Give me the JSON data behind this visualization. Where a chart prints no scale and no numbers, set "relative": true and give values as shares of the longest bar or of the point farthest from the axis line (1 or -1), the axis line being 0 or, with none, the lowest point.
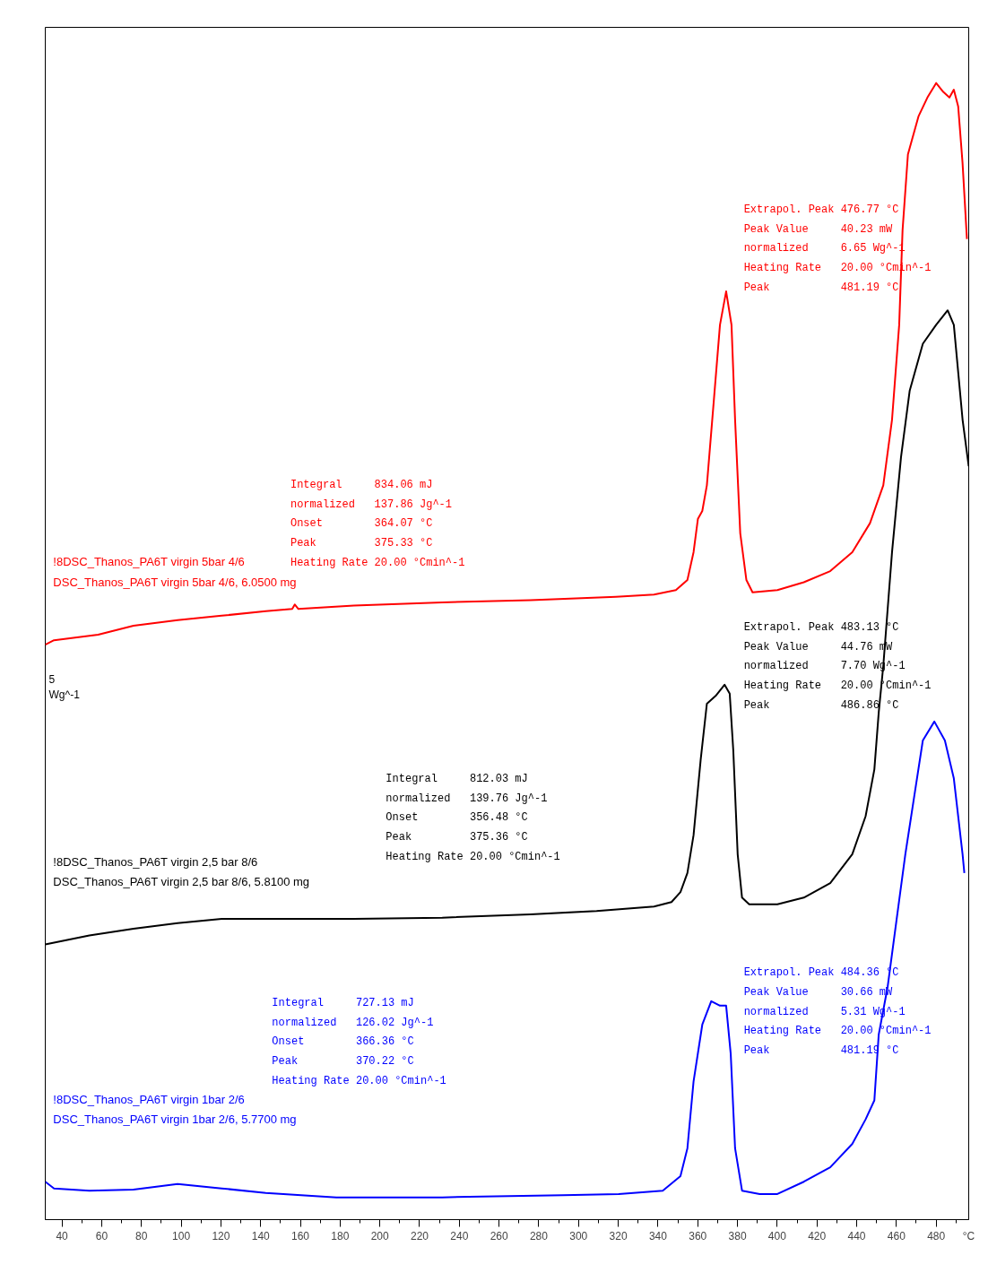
{
  "chart_data": {
    "type": "line",
    "relative": true,
    "xlabel": "°C",
    "xlim": [
      31.6,
      496.4
    ],
    "xticks": [
      40,
      60,
      80,
      100,
      120,
      140,
      160,
      180,
      200,
      220,
      240,
      260,
      280,
      300,
      320,
      340,
      360,
      380,
      400,
      420,
      440,
      460,
      480
    ],
    "grid": false,
    "series": [
      {
        "name": "!8DSC_Thanos_PA6T virgin 5bar 4/6\nDSC_Thanos_PA6T virgin 5bar 4/6, 6.0500 mg",
        "color": "#ff0000",
        "x": [
          31.6,
          36.0,
          58.2,
          76.0,
          98.2,
          120.4,
          142.6,
          155.9,
          157.2,
          159.0,
          187.0,
          231.4,
          275.8,
          318.8,
          338.0,
          349.0,
          354.8,
          357.9,
          360.1,
          362.3,
          364.6,
          368.1,
          371.2,
          374.3,
          377.0,
          378.8,
          381.4,
          384.5,
          387.6,
          400.1,
          413.4,
          426.7,
          437.8,
          446.7,
          453.4,
          457.8,
          461.4,
          463.1,
          465.8,
          471.1,
          475.6,
          480.0,
          483.6,
          486.7,
          488.9,
          491.1,
          493.3,
          495.5
        ],
        "values": [
          0.496,
          0.5,
          0.505,
          0.513,
          0.518,
          0.522,
          0.526,
          0.528,
          0.532,
          0.528,
          0.531,
          0.534,
          0.536,
          0.539,
          0.541,
          0.545,
          0.554,
          0.579,
          0.609,
          0.616,
          0.639,
          0.715,
          0.783,
          0.813,
          0.783,
          0.698,
          0.596,
          0.554,
          0.543,
          0.545,
          0.552,
          0.562,
          0.579,
          0.605,
          0.639,
          0.698,
          0.783,
          0.868,
          0.936,
          0.97,
          0.987,
          1.0,
          0.992,
          0.987,
          0.994,
          0.979,
          0.928,
          0.86
        ]
      },
      {
        "name": "!8DSC_Thanos_PA6T virgin 2,5 bar 8/6\nDSC_Thanos_PA6T virgin 2,5 bar 8/6, 5.8100 mg",
        "color": "#000000",
        "x": [
          31.6,
          53.8,
          76.0,
          98.2,
          120.4,
          142.6,
          187.0,
          231.4,
          275.8,
          309.1,
          338.0,
          346.8,
          351.3,
          354.8,
          357.9,
          361.5,
          364.6,
          369.0,
          373.5,
          376.1,
          377.9,
          380.1,
          382.3,
          385.9,
          400.1,
          413.4,
          426.7,
          437.8,
          444.5,
          448.9,
          451.1,
          453.4,
          457.8,
          462.3,
          466.7,
          473.3,
          480.0,
          485.8,
          488.9,
          493.3,
          496.4
        ],
        "values": [
          0.227,
          0.235,
          0.241,
          0.246,
          0.25,
          0.25,
          0.25,
          0.251,
          0.254,
          0.257,
          0.261,
          0.265,
          0.274,
          0.291,
          0.325,
          0.393,
          0.443,
          0.45,
          0.46,
          0.452,
          0.401,
          0.308,
          0.269,
          0.263,
          0.263,
          0.269,
          0.282,
          0.308,
          0.342,
          0.384,
          0.435,
          0.477,
          0.579,
          0.664,
          0.724,
          0.766,
          0.783,
          0.796,
          0.783,
          0.698,
          0.656
        ]
      },
      {
        "name": "!8DSC_Thanos_PA6T virgin 1bar 2/6\nDSC_Thanos_PA6T virgin 1bar 2/6, 5.7700 mg",
        "color": "#0000ff",
        "x": [
          31.6,
          36.0,
          53.8,
          76.0,
          98.2,
          120.4,
          142.6,
          178.1,
          231.4,
          292.2,
          320.2,
          342.4,
          351.3,
          354.8,
          357.9,
          362.3,
          366.8,
          371.2,
          374.3,
          376.6,
          378.8,
          382.3,
          391.2,
          400.1,
          413.4,
          426.7,
          437.8,
          444.5,
          448.9,
          451.1,
          455.6,
          460.0,
          464.5,
          468.9,
          473.3,
          479.1,
          484.4,
          488.9,
          493.3,
          494.2
        ],
        "values": [
          0.014,
          0.008,
          0.006,
          0.007,
          0.012,
          0.008,
          0.004,
          0,
          0,
          0.002,
          0.003,
          0.006,
          0.019,
          0.044,
          0.104,
          0.155,
          0.176,
          0.172,
          0.172,
          0.129,
          0.044,
          0.006,
          0.003,
          0.003,
          0.014,
          0.027,
          0.048,
          0.07,
          0.087,
          0.146,
          0.189,
          0.248,
          0.308,
          0.359,
          0.41,
          0.427,
          0.41,
          0.376,
          0.308,
          0.291
        ]
      }
    ],
    "annotations": [
      "Integral 834.06 mJ\nnormalized 137.86 Jg^-1\nOnset 364.07 °C\nPeak 375.33 °C\nHeating Rate 20.00 °Cmin^-1",
      "Extrapol. Peak 476.77 °C\nPeak Value 40.23 mW\nnormalized 6.65 Wg^-1\nHeating Rate 20.00 °Cmin^-1\nPeak 481.19 °C",
      "Integral 812.03 mJ\nnormalized 139.76 Jg^-1\nOnset 356.48 °C\nPeak 375.36 °C\nHeating Rate 20.00 °Cmin^-1",
      "Extrapol. Peak 483.13 °C\nPeak Value 44.76 mW\nnormalized 7.70 Wg^-1\nHeating Rate 20.00 °Cmin^-1\nPeak 486.86 °C",
      "Integral 727.13 mJ\nnormalized 126.02 Jg^-1\nOnset 366.36 °C\nPeak 370.22 °C\nHeating Rate 20.00 °Cmin^-1",
      "Extrapol. Peak 484.36 °C\nPeak Value 30.66 mW\nnormalized 5.31 Wg^-1\nHeating Rate 20.00 °Cmin^-1\nPeak 481.19 °C",
      "5\nWg^-1"
    ]
  }
}
